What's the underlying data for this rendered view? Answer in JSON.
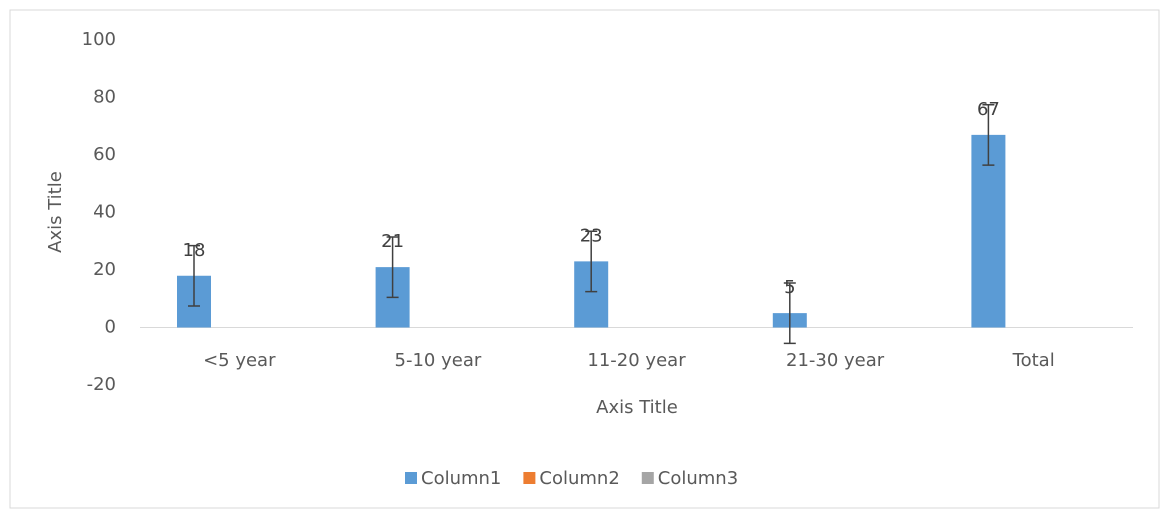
{
  "chart_data": {
    "type": "bar",
    "x_label": "Axis Title",
    "y_label": "Axis Title",
    "categories": [
      "<5 year",
      "5-10 year",
      "11-20 year",
      "21-30 year",
      "Total"
    ],
    "series": [
      {
        "name": "Column1",
        "color": "#5b9bd5",
        "values": [
          18,
          21,
          23,
          5,
          67
        ],
        "errors": [
          10.5,
          10.5,
          10.5,
          10.5,
          10.5
        ]
      },
      {
        "name": "Column2",
        "color": "#ed7d31",
        "values": [
          null,
          null,
          null,
          null,
          null
        ]
      },
      {
        "name": "Column3",
        "color": "#a5a5a5",
        "values": [
          null,
          null,
          null,
          null,
          null
        ]
      }
    ],
    "ylim": [
      -20,
      100
    ],
    "yticks": [
      -20,
      0,
      20,
      40,
      60,
      80,
      100
    ],
    "grid": false,
    "legend": "bottom"
  }
}
